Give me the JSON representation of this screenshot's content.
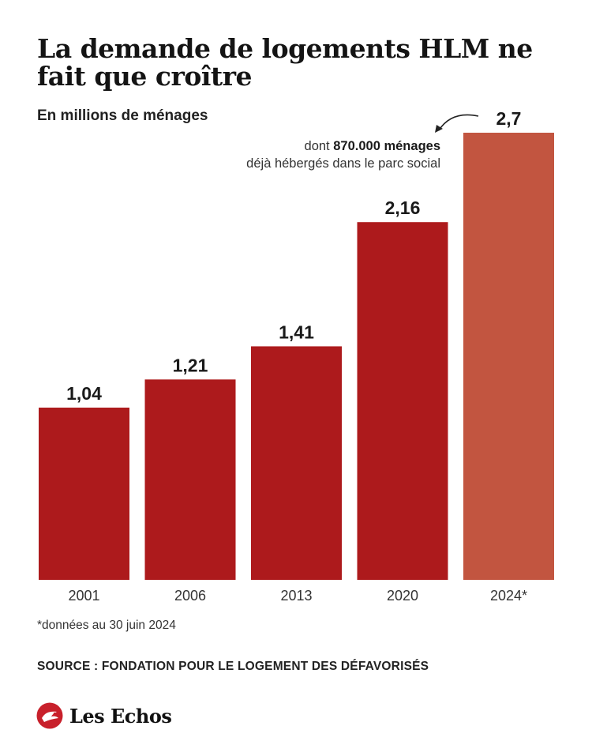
{
  "title": "La demande de logements HLM ne fait que croître",
  "subtitle": "En millions de ménages",
  "annotation": {
    "prefix": "dont ",
    "highlight": "870.000 ménages",
    "line2": "déjà hébergés dans le parc social"
  },
  "footnote": "*données au 30 juin 2024",
  "source": "SOURCE : FONDATION POUR LE LOGEMENT DES DÉFAVORISÉS",
  "brand": {
    "name": "Les Echos",
    "logo_icon": "les-echos-logo-icon"
  },
  "colors": {
    "bar": "#ad1a1c",
    "bar_highlight": "#c25540",
    "text": "#1a1a1a"
  },
  "chart_data": {
    "type": "bar",
    "categories": [
      "2001",
      "2006",
      "2013",
      "2020",
      "2024*"
    ],
    "values": [
      1.04,
      1.21,
      1.41,
      2.16,
      2.7
    ],
    "labels": [
      "1,04",
      "1,21",
      "1,41",
      "2,16",
      "2,7"
    ],
    "highlight_index": 4,
    "ylim": [
      0,
      2.7
    ],
    "grid": false,
    "xlabel": "",
    "ylabel": ""
  }
}
